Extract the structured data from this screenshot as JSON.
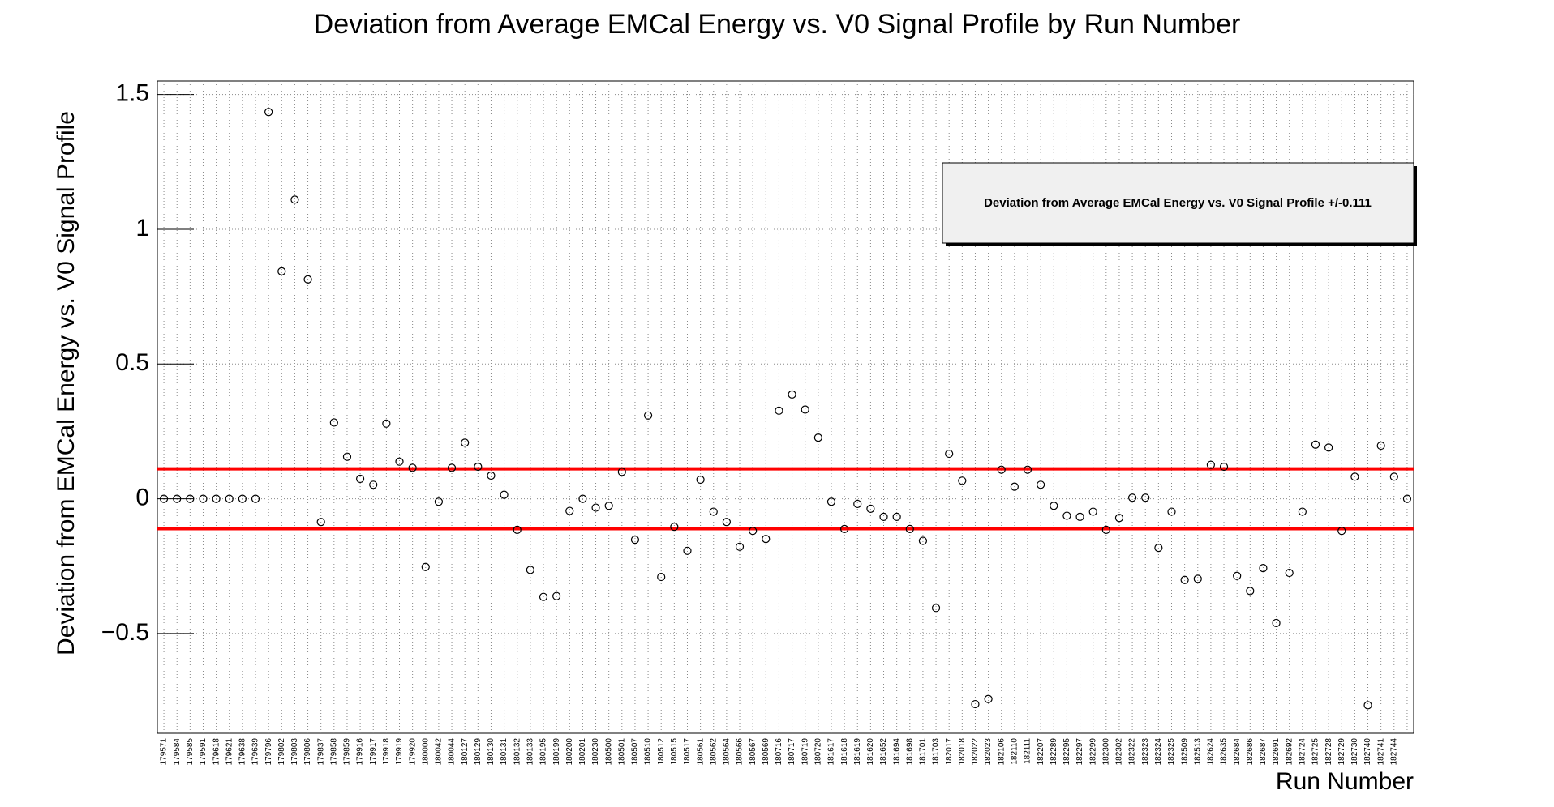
{
  "chart_data": {
    "type": "scatter",
    "title": "Deviation from Average EMCal Energy vs. V0 Signal Profile by Run Number",
    "x_label": "Run Number",
    "y_label": "Deviation from EMCal Energy vs. V0 Signal Profile",
    "categories": [
      "179571",
      "179584",
      "179585",
      "179591",
      "179618",
      "179621",
      "179638",
      "179639",
      "179796",
      "179802",
      "179803",
      "179806",
      "179837",
      "179858",
      "179859",
      "179916",
      "179917",
      "179918",
      "179919",
      "179920",
      "180000",
      "180042",
      "180044",
      "180127",
      "180129",
      "180130",
      "180131",
      "180132",
      "180133",
      "180195",
      "180199",
      "180200",
      "180201",
      "180230",
      "180500",
      "180501",
      "180507",
      "180510",
      "180512",
      "180515",
      "180517",
      "180561",
      "180562",
      "180564",
      "180566",
      "180567",
      "180569",
      "180716",
      "180717",
      "180719",
      "180720",
      "181617",
      "181618",
      "181619",
      "181620",
      "181652",
      "181694",
      "181698",
      "181701",
      "181703",
      "182017",
      "182018",
      "182022",
      "182023",
      "182106",
      "182110",
      "182111",
      "182207",
      "182289",
      "182295",
      "182297",
      "182299",
      "182300",
      "182302",
      "182322",
      "182323",
      "182324",
      "182325",
      "182509",
      "182513",
      "182624",
      "182635",
      "182684",
      "182686",
      "182687",
      "182691",
      "182692",
      "182724",
      "182725",
      "182728",
      "182729",
      "182730",
      "182740",
      "182741",
      "182744",
      null
    ],
    "values": [
      0,
      0,
      0,
      0,
      0,
      0,
      0,
      0,
      1.435,
      0.844,
      1.11,
      0.814,
      -0.086,
      0.283,
      0.156,
      0.074,
      0.052,
      0.279,
      0.138,
      0.115,
      -0.253,
      -0.011,
      0.115,
      0.208,
      0.119,
      0.086,
      0.015,
      -0.115,
      -0.264,
      -0.364,
      -0.361,
      -0.045,
      0,
      -0.033,
      -0.026,
      0.1,
      -0.152,
      0.309,
      -0.29,
      -0.104,
      -0.193,
      0.071,
      -0.048,
      -0.086,
      -0.178,
      -0.119,
      -0.149,
      0.327,
      0.387,
      0.331,
      0.227,
      -0.011,
      -0.112,
      -0.019,
      -0.037,
      -0.067,
      -0.067,
      -0.112,
      -0.156,
      -0.405,
      0.167,
      0.067,
      -0.762,
      -0.743,
      0.108,
      0.045,
      0.108,
      0.052,
      -0.026,
      -0.063,
      -0.067,
      -0.048,
      -0.115,
      -0.071,
      0.004,
      0.004,
      -0.182,
      -0.048,
      -0.301,
      -0.297,
      0.126,
      0.119,
      -0.286,
      -0.342,
      -0.257,
      -0.461,
      -0.275,
      -0.048,
      0.201,
      0.19,
      -0.119,
      0.082,
      -0.766,
      0.197,
      0.082,
      0
    ],
    "color": "#000000",
    "reference_lines": {
      "name": "Deviation from Average EMCal Energy vs. V0 Signal Profile +/-0.111",
      "values": [
        0.111,
        -0.111
      ],
      "color": "#ff0000"
    },
    "ylim": [
      -0.87,
      1.55
    ],
    "yticks": [
      {
        "value": -0.5,
        "label": "−0.5"
      },
      0,
      0.5,
      1,
      1.5
    ],
    "grid": true,
    "legend_position": "upper right"
  }
}
